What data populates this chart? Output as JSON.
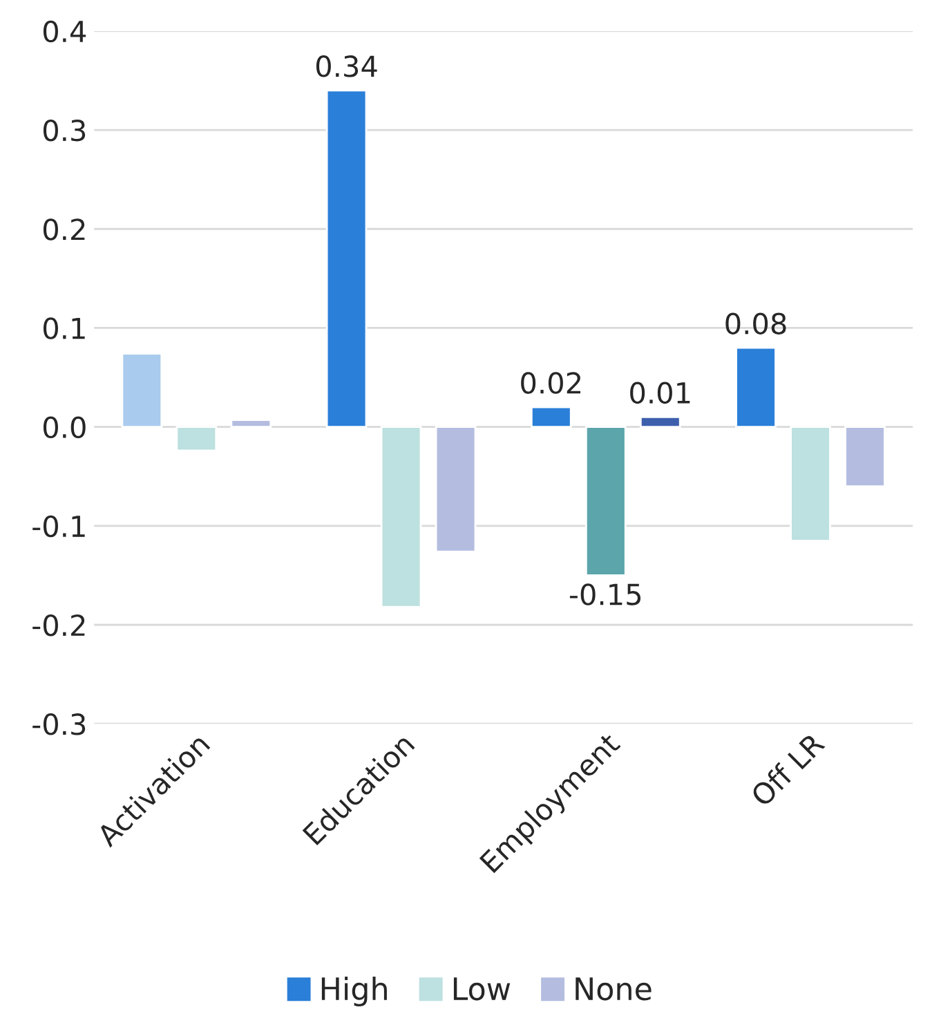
{
  "chart_data": {
    "type": "bar",
    "categories": [
      "Activation",
      "Education",
      "Employment",
      "Off LR"
    ],
    "series": [
      {
        "name": "High",
        "color": "#2a7fd8",
        "colors": [
          "#a9cbee",
          "#2a7fd8",
          "#2a7fd8",
          "#2a7fd8"
        ],
        "values": [
          0.074,
          0.34,
          0.02,
          0.08
        ],
        "value_labels": [
          null,
          "0.34",
          "0.02",
          "0.08"
        ]
      },
      {
        "name": "Low",
        "color": "#bde0e0",
        "colors": [
          "#bde0e0",
          "#bde0e0",
          "#5ba5ab",
          "#bde0e0"
        ],
        "values": [
          -0.024,
          -0.182,
          -0.15,
          -0.115
        ],
        "value_labels": [
          null,
          null,
          "-0.15",
          null
        ]
      },
      {
        "name": "None",
        "color": "#b4bde0",
        "colors": [
          "#b4bde0",
          "#b4bde0",
          "#3d5fac",
          "#b4bde0"
        ],
        "values": [
          0.007,
          -0.126,
          0.01,
          -0.06
        ],
        "value_labels": [
          null,
          null,
          "0.01",
          null
        ]
      }
    ],
    "ylim": [
      -0.3,
      0.4
    ],
    "yticks": [
      -0.3,
      -0.2,
      -0.1,
      {
        "value": 0,
        "label": "0.0"
      },
      0.1,
      0.2,
      0.3,
      0.4
    ],
    "grid": "y",
    "legend": "bottom"
  }
}
